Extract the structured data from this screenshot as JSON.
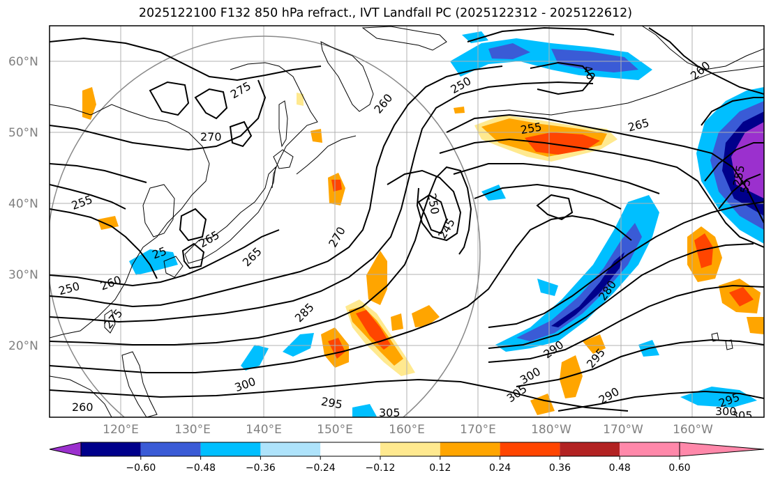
{
  "title": "2025122100 F132 850 hPa refract., IVT Landfall PC (2025122312 - 2025122612)",
  "lat_labels": [
    "60°N",
    "50°N",
    "40°N",
    "30°N",
    "20°N"
  ],
  "lon_labels": [
    "120°E",
    "130°E",
    "140°E",
    "150°E",
    "160°E",
    "170°E",
    "180°W",
    "170°W",
    "160°W"
  ],
  "contour_labels": [
    "275",
    "270",
    "260",
    "250",
    "255",
    "265",
    "255",
    "40",
    "255",
    "25",
    "265",
    "260",
    "250",
    "275",
    "265",
    "270",
    "250",
    "245",
    "285",
    "300",
    "295",
    "305",
    "280",
    "290",
    "295",
    "290",
    "300",
    "305",
    "295",
    "300",
    "305",
    "260",
    "55",
    "260"
  ],
  "colorbar": {
    "ticks": [
      "−0.60",
      "−0.48",
      "−0.36",
      "−0.24",
      "−0.12",
      "0.12",
      "0.24",
      "0.36",
      "0.48",
      "0.60"
    ],
    "colors": [
      "#9b30ce",
      "#00008b",
      "#3a5bd6",
      "#00bfff",
      "#aee3fb",
      "#ffffff",
      "#ffe98f",
      "#ffa500",
      "#ff4500",
      "#b22222",
      "#ff88aa"
    ]
  }
}
